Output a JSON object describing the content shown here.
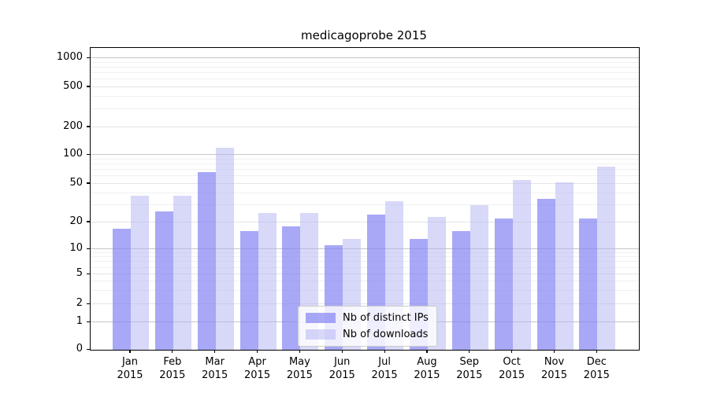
{
  "chart": {
    "title": "medicagoprobe 2015"
  },
  "chart_data": {
    "type": "bar",
    "title": "medicagoprobe 2015",
    "categories": [
      "Jan 2015",
      "Feb 2015",
      "Mar 2015",
      "Apr 2015",
      "May 2015",
      "Jun 2015",
      "Jul 2015",
      "Aug 2015",
      "Sep 2015",
      "Oct 2015",
      "Nov 2015",
      "Dec 2015"
    ],
    "series": [
      {
        "name": "Nb of distinct IPs",
        "color": "#8383f4",
        "opacity": 0.7,
        "values": [
          17,
          26,
          66,
          16,
          18,
          11,
          24,
          13,
          16,
          22,
          35,
          22
        ]
      },
      {
        "name": "Nb of downloads",
        "color": "#b1b1f1",
        "opacity": 0.5,
        "values": [
          38,
          38,
          120,
          25,
          25,
          13,
          33,
          23,
          30,
          55,
          52,
          75
        ]
      }
    ],
    "xlabel": "",
    "ylabel": "",
    "yscale": "asinh-symlog",
    "yticks": [
      0,
      1,
      2,
      5,
      10,
      20,
      50,
      100,
      200,
      500,
      1000
    ],
    "ylim": [
      0,
      1300
    ],
    "grid": true,
    "legend_position": "lower center"
  }
}
